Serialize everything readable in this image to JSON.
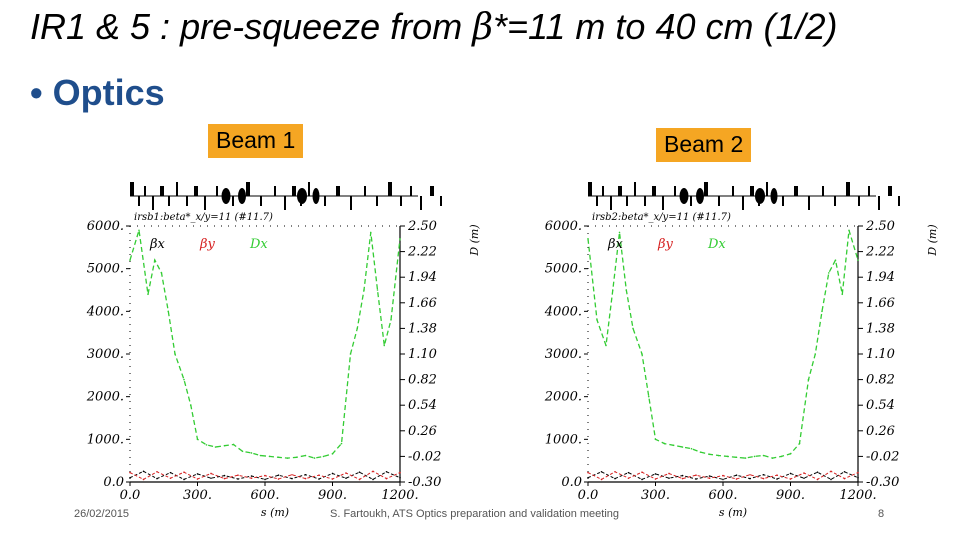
{
  "slide": {
    "title_pre": "IR1 & 5 : pre-squeeze from ",
    "title_beta": "β",
    "title_post": "*=11 m to 40 cm (1/2)",
    "bullet": "• Optics",
    "beam_labels": [
      "Beam 1",
      "Beam 2"
    ]
  },
  "footer": {
    "date": "26/02/2015",
    "meeting": "S. Fartoukh,  ATS Optics preparation and validation meeting",
    "page": "8"
  },
  "chart_data": [
    {
      "type": "line",
      "title": "irsb1:beta*_x/y=11 (#11.7)",
      "xlabel": "s (m)",
      "ylabel_right": "D (m)",
      "xlim": [
        0,
        1200
      ],
      "ylim": [
        0,
        6000
      ],
      "ylim_right": [
        -0.3,
        2.5
      ],
      "x_ticks": [
        "0.0",
        "300.",
        "600.",
        "900.",
        "1200."
      ],
      "y_ticks": [
        "0.0",
        "1000.",
        "2000.",
        "3000.",
        "4000.",
        "5000.",
        "6000."
      ],
      "y2_ticks": [
        "-0.30",
        "-0.02",
        "0.26",
        "0.54",
        "0.82",
        "1.10",
        "1.38",
        "1.66",
        "1.94",
        "2.22",
        "2.50"
      ],
      "legend": [
        "βx",
        "βy",
        "Dx"
      ],
      "series": [
        {
          "name": "βx",
          "color": "#000000",
          "x": [
            0,
            60,
            120,
            180,
            240,
            300,
            360,
            420,
            480,
            540,
            600,
            660,
            720,
            780,
            840,
            900,
            960,
            1020,
            1080,
            1140,
            1200
          ],
          "y": [
            100,
            250,
            80,
            220,
            60,
            190,
            90,
            150,
            70,
            140,
            60,
            160,
            80,
            170,
            70,
            200,
            90,
            230,
            60,
            240,
            100
          ]
        },
        {
          "name": "βy",
          "color": "#d62020",
          "x": [
            0,
            60,
            120,
            180,
            240,
            300,
            360,
            420,
            480,
            540,
            600,
            660,
            720,
            780,
            840,
            900,
            960,
            1020,
            1080,
            1140,
            1200
          ],
          "y": [
            220,
            60,
            240,
            90,
            230,
            70,
            200,
            80,
            160,
            90,
            150,
            70,
            170,
            80,
            160,
            70,
            210,
            60,
            250,
            80,
            220
          ]
        },
        {
          "name": "Dx",
          "color": "#33cc33",
          "x": [
            0,
            40,
            80,
            110,
            140,
            170,
            200,
            240,
            270,
            300,
            340,
            380,
            420,
            460,
            500,
            540,
            580,
            620,
            660,
            700,
            740,
            780,
            820,
            860,
            900,
            940,
            980,
            1010,
            1040,
            1070,
            1100,
            1130,
            1160,
            1200
          ],
          "y": [
            5200,
            5900,
            4400,
            5200,
            4900,
            4000,
            3000,
            2400,
            1800,
            1000,
            870,
            820,
            850,
            880,
            720,
            680,
            620,
            600,
            580,
            560,
            580,
            620,
            560,
            600,
            660,
            900,
            3000,
            3600,
            4500,
            5850,
            4500,
            3200,
            3800,
            5700
          ]
        }
      ]
    },
    {
      "type": "line",
      "title": "irsb2:beta*_x/y=11 (#11.7)",
      "xlabel": "s (m)",
      "ylabel_right": "D (m)",
      "xlim": [
        0,
        1200
      ],
      "ylim": [
        0,
        6000
      ],
      "ylim_right": [
        -0.3,
        2.5
      ],
      "x_ticks": [
        "0.0",
        "300.",
        "600.",
        "900.",
        "1200."
      ],
      "y_ticks": [
        "0.0",
        "1000.",
        "2000.",
        "3000.",
        "4000.",
        "5000.",
        "6000."
      ],
      "y2_ticks": [
        "-0.30",
        "-0.02",
        "0.26",
        "0.54",
        "0.82",
        "1.10",
        "1.38",
        "1.66",
        "1.94",
        "2.22",
        "2.50"
      ],
      "legend": [
        "βx",
        "βy",
        "Dx"
      ],
      "series": [
        {
          "name": "βx",
          "color": "#000000",
          "x": [
            0,
            60,
            120,
            180,
            240,
            300,
            360,
            420,
            480,
            540,
            600,
            660,
            720,
            780,
            840,
            900,
            960,
            1020,
            1080,
            1140,
            1200
          ],
          "y": [
            100,
            240,
            80,
            220,
            60,
            190,
            90,
            150,
            70,
            140,
            60,
            160,
            80,
            170,
            70,
            200,
            90,
            230,
            60,
            240,
            100
          ]
        },
        {
          "name": "βy",
          "color": "#d62020",
          "x": [
            0,
            60,
            120,
            180,
            240,
            300,
            360,
            420,
            480,
            540,
            600,
            660,
            720,
            780,
            840,
            900,
            960,
            1020,
            1080,
            1140,
            1200
          ],
          "y": [
            220,
            60,
            240,
            90,
            230,
            70,
            200,
            80,
            160,
            90,
            150,
            70,
            170,
            80,
            160,
            70,
            210,
            60,
            250,
            80,
            220
          ]
        },
        {
          "name": "Dx",
          "color": "#33cc33",
          "x": [
            0,
            40,
            80,
            110,
            140,
            170,
            200,
            240,
            270,
            300,
            340,
            380,
            420,
            460,
            500,
            540,
            580,
            620,
            660,
            700,
            740,
            780,
            820,
            860,
            900,
            940,
            980,
            1010,
            1040,
            1070,
            1100,
            1130,
            1160,
            1200
          ],
          "y": [
            5700,
            3800,
            3200,
            4500,
            5850,
            4500,
            3600,
            3000,
            2000,
            1000,
            900,
            860,
            820,
            780,
            700,
            650,
            620,
            600,
            580,
            560,
            600,
            620,
            560,
            600,
            660,
            900,
            2400,
            3000,
            4000,
            4900,
            5200,
            4400,
            5900,
            5200
          ]
        }
      ]
    }
  ]
}
